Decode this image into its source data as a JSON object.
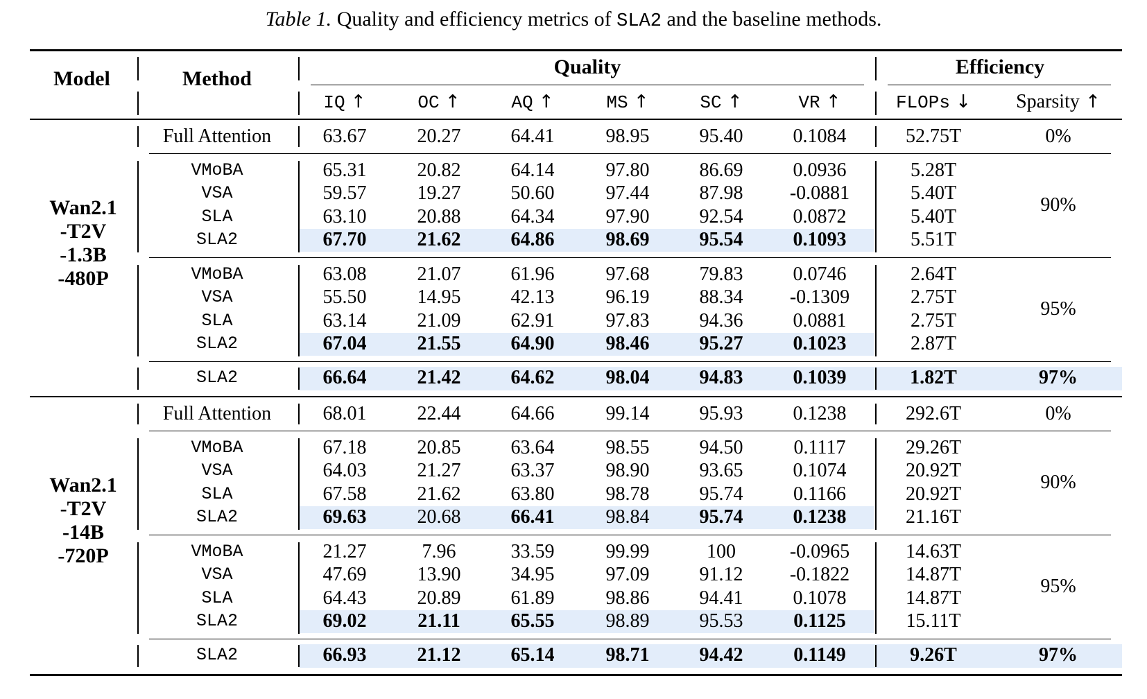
{
  "caption": {
    "label": "Table 1.",
    "text_before": "Quality and efficiency metrics of",
    "code": "SLA2",
    "text_after": "and the baseline methods."
  },
  "headers": {
    "model": "Model",
    "method": "Method",
    "quality": "Quality",
    "efficiency": "Efficiency",
    "columns": [
      "IQ",
      "OC",
      "AQ",
      "MS",
      "SC",
      "VR",
      "FLOPs",
      "Sparsity"
    ],
    "arrows": [
      "↑",
      "↑",
      "↑",
      "↑",
      "↑",
      "↑",
      "↓",
      "↑"
    ]
  },
  "models": [
    {
      "name_lines": [
        "Wan2.1",
        "-T2V",
        "-1.3B",
        "-480P"
      ],
      "full": {
        "method": "Full Attention",
        "values": [
          "63.67",
          "20.27",
          "64.41",
          "98.95",
          "95.40",
          "0.1084"
        ],
        "flops": "52.75T",
        "sparsity": "0%"
      },
      "groups": [
        {
          "sparsity": "90%",
          "rows": [
            {
              "method": "VMoBA",
              "values": [
                "65.31",
                "20.82",
                "64.14",
                "97.80",
                "86.69",
                "0.0936"
              ],
              "flops": "5.28T",
              "bold": [
                false,
                false,
                false,
                false,
                false,
                false
              ]
            },
            {
              "method": "VSA",
              "values": [
                "59.57",
                "19.27",
                "50.60",
                "97.44",
                "87.98",
                "-0.0881"
              ],
              "flops": "5.40T",
              "bold": [
                false,
                false,
                false,
                false,
                false,
                false
              ]
            },
            {
              "method": "SLA",
              "values": [
                "63.10",
                "20.88",
                "64.34",
                "97.90",
                "92.54",
                "0.0872"
              ],
              "flops": "5.40T",
              "bold": [
                false,
                false,
                false,
                false,
                false,
                false
              ]
            },
            {
              "method": "SLA2",
              "values": [
                "67.70",
                "21.62",
                "64.86",
                "98.69",
                "95.54",
                "0.1093"
              ],
              "flops": "5.51T",
              "bold": [
                true,
                true,
                true,
                true,
                true,
                true
              ],
              "highlight": true
            }
          ]
        },
        {
          "sparsity": "95%",
          "rows": [
            {
              "method": "VMoBA",
              "values": [
                "63.08",
                "21.07",
                "61.96",
                "97.68",
                "79.83",
                "0.0746"
              ],
              "flops": "2.64T",
              "bold": [
                false,
                false,
                false,
                false,
                false,
                false
              ]
            },
            {
              "method": "VSA",
              "values": [
                "55.50",
                "14.95",
                "42.13",
                "96.19",
                "88.34",
                "-0.1309"
              ],
              "flops": "2.75T",
              "bold": [
                false,
                false,
                false,
                false,
                false,
                false
              ]
            },
            {
              "method": "SLA",
              "values": [
                "63.14",
                "21.09",
                "62.91",
                "97.83",
                "94.36",
                "0.0881"
              ],
              "flops": "2.75T",
              "bold": [
                false,
                false,
                false,
                false,
                false,
                false
              ]
            },
            {
              "method": "SLA2",
              "values": [
                "67.04",
                "21.55",
                "64.90",
                "98.46",
                "95.27",
                "0.1023"
              ],
              "flops": "2.87T",
              "bold": [
                true,
                true,
                true,
                true,
                true,
                true
              ],
              "highlight": true
            }
          ]
        }
      ],
      "best": {
        "method": "SLA2",
        "values": [
          "66.64",
          "21.42",
          "64.62",
          "98.04",
          "94.83",
          "0.1039"
        ],
        "flops": "1.82T",
        "sparsity": "97%"
      }
    },
    {
      "name_lines": [
        "Wan2.1",
        "-T2V",
        "-14B",
        "-720P"
      ],
      "full": {
        "method": "Full Attention",
        "values": [
          "68.01",
          "22.44",
          "64.66",
          "99.14",
          "95.93",
          "0.1238"
        ],
        "flops": "292.6T",
        "sparsity": "0%"
      },
      "groups": [
        {
          "sparsity": "90%",
          "rows": [
            {
              "method": "VMoBA",
              "values": [
                "67.18",
                "20.85",
                "63.64",
                "98.55",
                "94.50",
                "0.1117"
              ],
              "flops": "29.26T",
              "bold": [
                false,
                false,
                false,
                false,
                false,
                false
              ]
            },
            {
              "method": "VSA",
              "values": [
                "64.03",
                "21.27",
                "63.37",
                "98.90",
                "93.65",
                "0.1074"
              ],
              "flops": "20.92T",
              "bold": [
                false,
                false,
                false,
                false,
                false,
                false
              ]
            },
            {
              "method": "SLA",
              "values": [
                "67.58",
                "21.62",
                "63.80",
                "98.78",
                "95.74",
                "0.1166"
              ],
              "flops": "20.92T",
              "bold": [
                false,
                false,
                false,
                false,
                false,
                false
              ]
            },
            {
              "method": "SLA2",
              "values": [
                "69.63",
                "20.68",
                "66.41",
                "98.84",
                "95.74",
                "0.1238"
              ],
              "flops": "21.16T",
              "bold": [
                true,
                false,
                true,
                false,
                true,
                true
              ],
              "highlight": true
            }
          ]
        },
        {
          "sparsity": "95%",
          "rows": [
            {
              "method": "VMoBA",
              "values": [
                "21.27",
                "7.96",
                "33.59",
                "99.99",
                "100",
                "-0.0965"
              ],
              "flops": "14.63T",
              "bold": [
                false,
                false,
                false,
                false,
                false,
                false
              ]
            },
            {
              "method": "VSA",
              "values": [
                "47.69",
                "13.90",
                "34.95",
                "97.09",
                "91.12",
                "-0.1822"
              ],
              "flops": "14.87T",
              "bold": [
                false,
                false,
                false,
                false,
                false,
                false
              ]
            },
            {
              "method": "SLA",
              "values": [
                "64.43",
                "20.89",
                "61.89",
                "98.86",
                "94.41",
                "0.1078"
              ],
              "flops": "14.87T",
              "bold": [
                false,
                false,
                false,
                false,
                false,
                false
              ]
            },
            {
              "method": "SLA2",
              "values": [
                "69.02",
                "21.11",
                "65.55",
                "98.89",
                "95.53",
                "0.1125"
              ],
              "flops": "15.11T",
              "bold": [
                true,
                true,
                true,
                false,
                false,
                true
              ],
              "highlight": true
            }
          ]
        }
      ],
      "best": {
        "method": "SLA2",
        "values": [
          "66.93",
          "21.12",
          "65.14",
          "98.71",
          "94.42",
          "0.1149"
        ],
        "flops": "9.26T",
        "sparsity": "97%"
      }
    }
  ]
}
